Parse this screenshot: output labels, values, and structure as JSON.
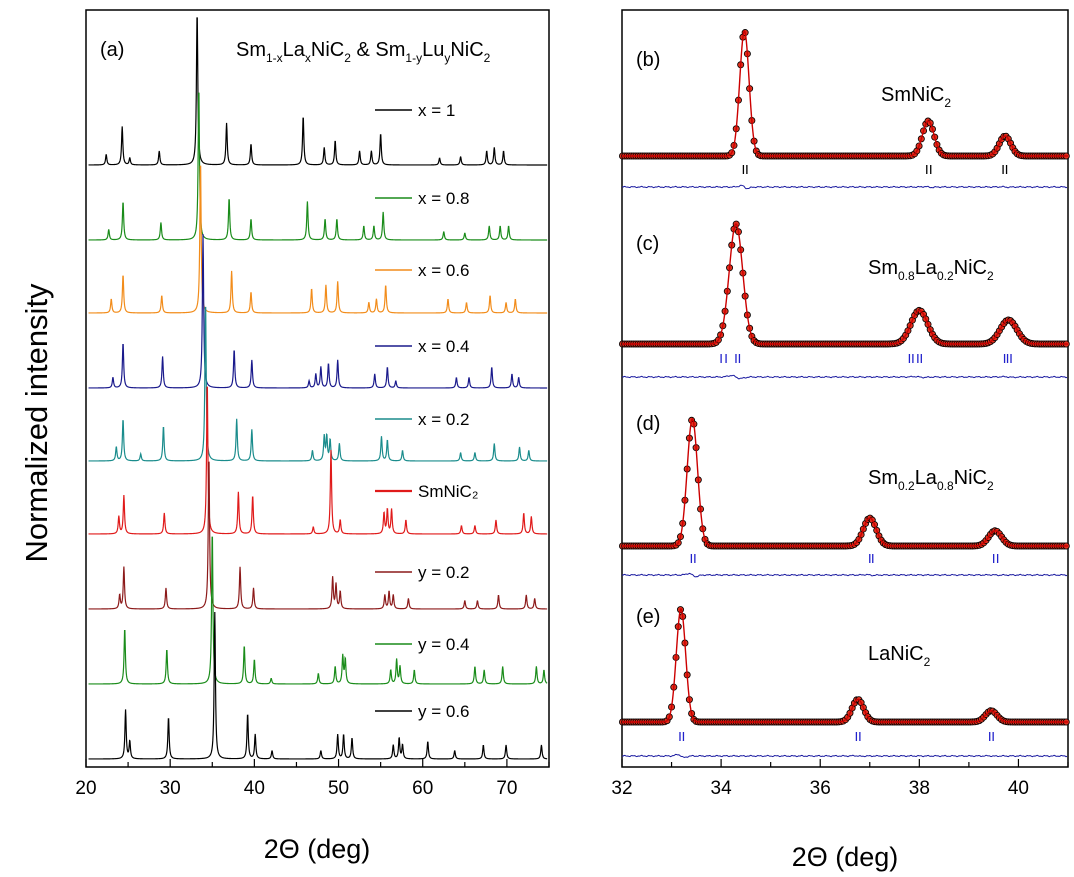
{
  "figure": {
    "ylabel": "Normalized intensity"
  },
  "chart_data": [
    {
      "type": "line",
      "panel": "(a)",
      "title_parts": {
        "a1": "Sm",
        "a1s": "1-x",
        "a2": "La",
        "a2s": "x",
        "a3": "NiC",
        "a3s": "2",
        "amp": " & ",
        "b1": "Sm",
        "b1s": "1-y",
        "b2": "Lu",
        "b2s": "y",
        "b3": "NiC",
        "b3s": "2"
      },
      "xlabel": "2Θ (deg)",
      "ylabel": "Normalized intensity",
      "xlim": [
        20,
        75
      ],
      "x_ticks": [
        20,
        30,
        40,
        50,
        60,
        70
      ],
      "series": [
        {
          "name": "x = 1",
          "color": "#000000",
          "base": 0,
          "peaks": [
            [
              22.4,
              0.15
            ],
            [
              24.3,
              0.55
            ],
            [
              25.2,
              0.1
            ],
            [
              28.7,
              0.2
            ],
            [
              33.2,
              2.3
            ],
            [
              36.7,
              0.6
            ],
            [
              39.6,
              0.3
            ],
            [
              45.8,
              0.7
            ],
            [
              48.3,
              0.25
            ],
            [
              49.6,
              0.35
            ],
            [
              52.5,
              0.2
            ],
            [
              53.9,
              0.2
            ],
            [
              55.0,
              0.45
            ],
            [
              62.0,
              0.1
            ],
            [
              64.5,
              0.12
            ],
            [
              67.6,
              0.2
            ],
            [
              68.5,
              0.25
            ],
            [
              69.6,
              0.2
            ]
          ]
        },
        {
          "name": "x = 0.8",
          "color": "#1a8c1a",
          "base": 1,
          "peaks": [
            [
              22.7,
              0.15
            ],
            [
              24.4,
              0.55
            ],
            [
              28.9,
              0.25
            ],
            [
              33.4,
              2.2
            ],
            [
              37.0,
              0.6
            ],
            [
              39.6,
              0.3
            ],
            [
              46.3,
              0.55
            ],
            [
              48.4,
              0.3
            ],
            [
              49.8,
              0.3
            ],
            [
              53.0,
              0.2
            ],
            [
              54.2,
              0.2
            ],
            [
              55.3,
              0.4
            ],
            [
              62.5,
              0.12
            ],
            [
              65.0,
              0.1
            ],
            [
              67.9,
              0.2
            ],
            [
              69.2,
              0.2
            ],
            [
              70.2,
              0.2
            ]
          ]
        },
        {
          "name": "x = 0.6",
          "color": "#f28c1a",
          "base": 2,
          "peaks": [
            [
              23.0,
              0.2
            ],
            [
              24.4,
              0.55
            ],
            [
              29.0,
              0.25
            ],
            [
              33.6,
              2.2
            ],
            [
              37.3,
              0.6
            ],
            [
              39.6,
              0.3
            ],
            [
              46.8,
              0.35
            ],
            [
              48.5,
              0.4
            ],
            [
              49.9,
              0.45
            ],
            [
              53.6,
              0.15
            ],
            [
              54.5,
              0.2
            ],
            [
              55.6,
              0.4
            ],
            [
              63.0,
              0.2
            ],
            [
              65.2,
              0.15
            ],
            [
              68.0,
              0.25
            ],
            [
              69.9,
              0.15
            ],
            [
              71.0,
              0.2
            ]
          ]
        },
        {
          "name": "x = 0.4",
          "color": "#1a1a8c",
          "base": 3,
          "peaks": [
            [
              23.2,
              0.15
            ],
            [
              24.4,
              0.65
            ],
            [
              29.1,
              0.45
            ],
            [
              33.9,
              2.2
            ],
            [
              37.6,
              0.55
            ],
            [
              39.7,
              0.4
            ],
            [
              46.5,
              0.1
            ],
            [
              47.3,
              0.2
            ],
            [
              47.9,
              0.3
            ],
            [
              48.8,
              0.35
            ],
            [
              49.9,
              0.4
            ],
            [
              54.3,
              0.2
            ],
            [
              55.8,
              0.3
            ],
            [
              56.8,
              0.1
            ],
            [
              64.0,
              0.15
            ],
            [
              65.5,
              0.15
            ],
            [
              68.2,
              0.3
            ],
            [
              70.6,
              0.2
            ],
            [
              71.4,
              0.15
            ]
          ]
        },
        {
          "name": "x = 0.2",
          "color": "#1a8c8c",
          "base": 4,
          "peaks": [
            [
              23.6,
              0.2
            ],
            [
              24.4,
              0.6
            ],
            [
              26.5,
              0.1
            ],
            [
              29.2,
              0.5
            ],
            [
              34.2,
              2.3
            ],
            [
              37.9,
              0.6
            ],
            [
              39.7,
              0.45
            ],
            [
              46.9,
              0.15
            ],
            [
              48.3,
              0.35
            ],
            [
              48.6,
              0.35
            ],
            [
              49.0,
              0.3
            ],
            [
              50.1,
              0.25
            ],
            [
              55.1,
              0.35
            ],
            [
              55.8,
              0.3
            ],
            [
              57.6,
              0.15
            ],
            [
              64.5,
              0.12
            ],
            [
              66.2,
              0.12
            ],
            [
              68.5,
              0.25
            ],
            [
              71.5,
              0.2
            ],
            [
              72.6,
              0.15
            ]
          ]
        },
        {
          "name": "SmNiC₂",
          "color": "#e01a1a",
          "base": 5,
          "peaks": [
            [
              23.9,
              0.25
            ],
            [
              24.5,
              0.55
            ],
            [
              29.3,
              0.3
            ],
            [
              34.4,
              2.2
            ],
            [
              38.1,
              0.6
            ],
            [
              39.8,
              0.55
            ],
            [
              47.0,
              0.1
            ],
            [
              49.1,
              1.2
            ],
            [
              50.2,
              0.2
            ],
            [
              55.4,
              0.3
            ],
            [
              55.8,
              0.35
            ],
            [
              56.3,
              0.35
            ],
            [
              58.0,
              0.2
            ],
            [
              64.6,
              0.12
            ],
            [
              66.2,
              0.12
            ],
            [
              68.7,
              0.2
            ],
            [
              72.0,
              0.3
            ],
            [
              72.9,
              0.25
            ]
          ]
        },
        {
          "name": "y = 0.2",
          "color": "#8c1a1a",
          "base": 6,
          "peaks": [
            [
              24.0,
              0.2
            ],
            [
              24.5,
              0.6
            ],
            [
              29.5,
              0.3
            ],
            [
              34.6,
              2.2
            ],
            [
              38.3,
              0.6
            ],
            [
              39.9,
              0.3
            ],
            [
              49.3,
              0.45
            ],
            [
              49.7,
              0.35
            ],
            [
              50.2,
              0.25
            ],
            [
              55.5,
              0.2
            ],
            [
              56.0,
              0.25
            ],
            [
              56.5,
              0.2
            ],
            [
              58.3,
              0.15
            ],
            [
              65.0,
              0.12
            ],
            [
              66.5,
              0.12
            ],
            [
              69.0,
              0.2
            ],
            [
              72.3,
              0.2
            ],
            [
              73.3,
              0.15
            ]
          ]
        },
        {
          "name": "y = 0.4",
          "color": "#1a8c1a",
          "base": 7,
          "peaks": [
            [
              24.6,
              0.8
            ],
            [
              29.6,
              0.5
            ],
            [
              35.0,
              2.2
            ],
            [
              38.8,
              0.55
            ],
            [
              40.0,
              0.35
            ],
            [
              42.0,
              0.08
            ],
            [
              47.6,
              0.15
            ],
            [
              49.6,
              0.25
            ],
            [
              50.5,
              0.4
            ],
            [
              50.8,
              0.35
            ],
            [
              56.2,
              0.2
            ],
            [
              56.9,
              0.35
            ],
            [
              57.3,
              0.25
            ],
            [
              59.0,
              0.2
            ],
            [
              66.2,
              0.25
            ],
            [
              67.3,
              0.2
            ],
            [
              69.5,
              0.25
            ],
            [
              73.5,
              0.25
            ],
            [
              74.4,
              0.2
            ]
          ]
        },
        {
          "name": "y = 0.6",
          "color": "#000000",
          "base": 8,
          "peaks": [
            [
              24.7,
              0.7
            ],
            [
              25.2,
              0.25
            ],
            [
              29.8,
              0.6
            ],
            [
              35.3,
              2.1
            ],
            [
              39.2,
              0.65
            ],
            [
              40.1,
              0.35
            ],
            [
              42.1,
              0.12
            ],
            [
              47.9,
              0.12
            ],
            [
              49.9,
              0.35
            ],
            [
              50.6,
              0.35
            ],
            [
              51.6,
              0.3
            ],
            [
              56.5,
              0.2
            ],
            [
              57.2,
              0.3
            ],
            [
              57.6,
              0.2
            ],
            [
              60.6,
              0.25
            ],
            [
              63.8,
              0.12
            ],
            [
              67.2,
              0.2
            ],
            [
              69.9,
              0.2
            ],
            [
              74.1,
              0.2
            ]
          ]
        }
      ]
    },
    {
      "type": "line",
      "panels": [
        {
          "letter": "(b)",
          "label_main": "SmNiC",
          "label_sub": "2",
          "peaks": [
            [
              34.47,
              1.0
            ],
            [
              38.18,
              0.28
            ],
            [
              39.73,
              0.16
            ]
          ],
          "tick_color": "#000000",
          "ticks": [
            34.45,
            34.52,
            38.15,
            38.23,
            39.69,
            39.76
          ],
          "width": 0.09
        },
        {
          "letter": "(c)",
          "label_parts": [
            "Sm",
            "0.8",
            "La",
            "0.2",
            "NiC",
            "2"
          ],
          "peaks": [
            [
              34.3,
              1.0
            ],
            [
              38.0,
              0.28
            ],
            [
              39.8,
              0.2
            ]
          ],
          "tick_color": "#2222cc",
          "ticks": [
            34.0,
            34.1,
            34.3,
            34.37,
            37.8,
            37.87,
            37.97,
            38.04,
            39.72,
            39.78,
            39.85
          ],
          "width": 0.13
        },
        {
          "letter": "(d)",
          "label_parts": [
            "Sm",
            "0.2",
            "La",
            "0.8",
            "NiC",
            "2"
          ],
          "peaks": [
            [
              33.42,
              1.0
            ],
            [
              37.0,
              0.22
            ],
            [
              39.53,
              0.12
            ]
          ],
          "tick_color": "#2222cc",
          "ticks": [
            33.4,
            33.47,
            37.0,
            37.06,
            39.5,
            39.58
          ],
          "width": 0.1
        },
        {
          "letter": "(e)",
          "label_main": "LaNiC",
          "label_sub": "2",
          "peaks": [
            [
              33.19,
              1.0
            ],
            [
              36.76,
              0.2
            ],
            [
              39.45,
              0.1
            ]
          ],
          "tick_color": "#2222cc",
          "ticks": [
            33.17,
            33.24,
            36.73,
            36.8,
            39.42,
            39.49
          ],
          "width": 0.09
        }
      ],
      "xlabel": "2Θ (deg)",
      "xlim": [
        32,
        41
      ],
      "x_ticks": [
        32,
        34,
        36,
        38,
        40
      ],
      "obs_color": "#e0301e",
      "calc_color": "#cc0000",
      "diff_color": "#1a1aa0"
    }
  ]
}
